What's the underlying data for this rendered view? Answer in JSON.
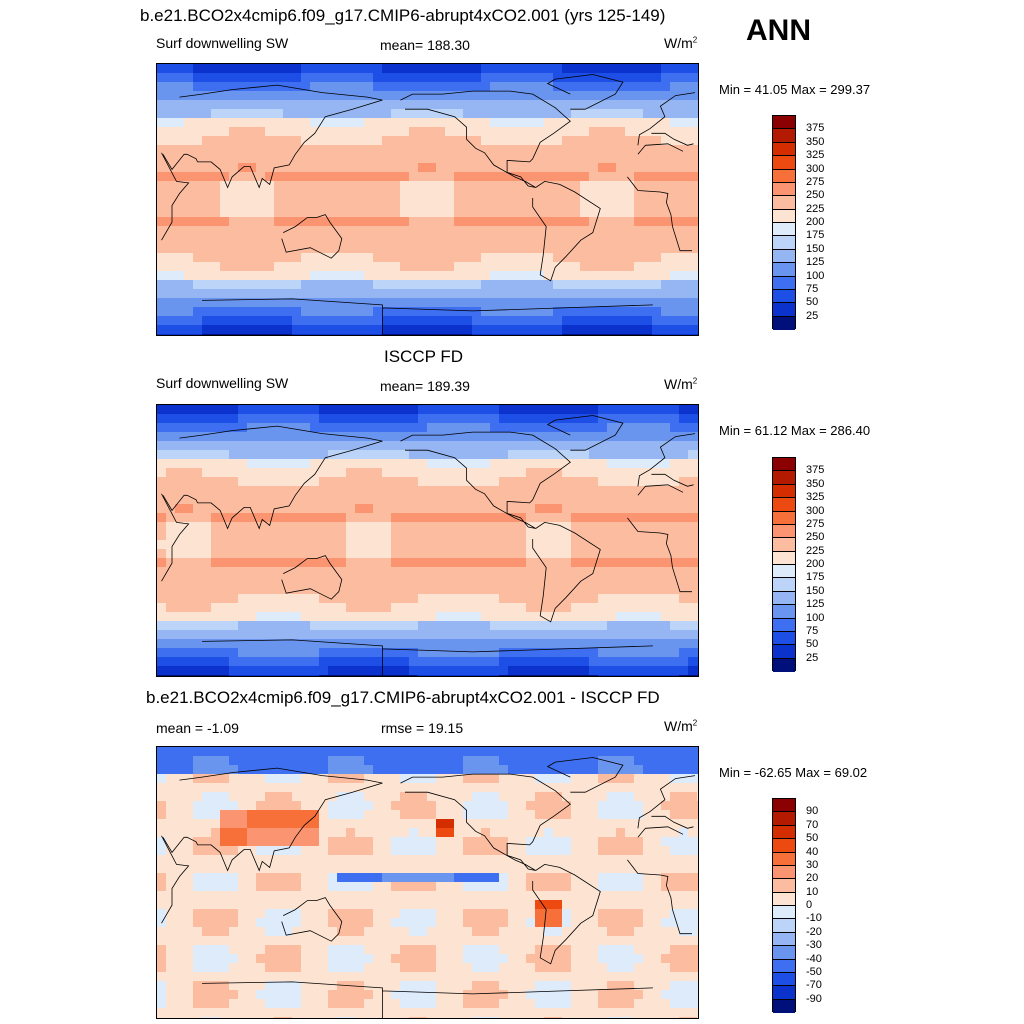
{
  "season": "ANN",
  "panels": [
    {
      "title": "b.e21.BCO2x4cmip6.f09_g17.CMIP6-abrupt4xCO2.001 (yrs 125-149)",
      "left_label": "Surf downwelling SW",
      "center_label": "mean= 188.30",
      "units": "W/m",
      "units_sup": "2",
      "minmax": "Min =  41.05 Max = 299.37",
      "palette": "absolute",
      "levels": [
        "375",
        "350",
        "325",
        "300",
        "275",
        "250",
        "225",
        "200",
        "175",
        "150",
        "125",
        "100",
        "75",
        "50",
        "25"
      ]
    },
    {
      "title": "ISCCP FD",
      "left_label": "Surf downwelling SW",
      "center_label": "mean= 189.39",
      "units": "W/m",
      "units_sup": "2",
      "minmax": "Min =  61.12 Max = 286.40",
      "palette": "absolute",
      "levels": [
        "375",
        "350",
        "325",
        "300",
        "275",
        "250",
        "225",
        "200",
        "175",
        "150",
        "125",
        "100",
        "75",
        "50",
        "25"
      ]
    },
    {
      "title": "b.e21.BCO2x4cmip6.f09_g17.CMIP6-abrupt4xCO2.001 - ISCCP FD",
      "left_label": "mean =  -1.09",
      "center_label": "rmse =  19.15",
      "units": "W/m",
      "units_sup": "2",
      "minmax": "Min = -62.65 Max =  69.02",
      "palette": "difference",
      "levels": [
        "90",
        "70",
        "50",
        "40",
        "30",
        "20",
        "10",
        "0",
        "-10",
        "-20",
        "-30",
        "-40",
        "-50",
        "-70",
        "-90"
      ]
    }
  ],
  "colors": {
    "scale": [
      "#8b0000",
      "#b31a00",
      "#d42d00",
      "#ec4a10",
      "#f7703a",
      "#fb9470",
      "#fcbca0",
      "#fde4d2",
      "#deebfb",
      "#bcd4f7",
      "#95b6f2",
      "#6a95ef",
      "#3e6ff0",
      "#1d4ee6",
      "#0b32cc",
      "#00107a"
    ]
  }
}
